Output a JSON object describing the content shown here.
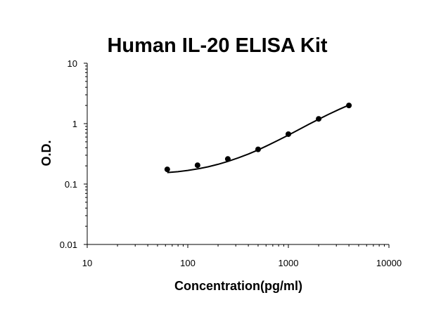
{
  "chart_data": {
    "type": "scatter",
    "title": "Human IL-20 ELISA Kit",
    "xlabel": "Concentration(pg/ml)",
    "ylabel": "O.D.",
    "x_scale": "log",
    "y_scale": "log",
    "xlim": [
      10,
      10000
    ],
    "ylim": [
      0.01,
      10
    ],
    "x_ticks": [
      {
        "value": 10,
        "label": "10"
      },
      {
        "value": 100,
        "label": "100"
      },
      {
        "value": 1000,
        "label": "1000"
      },
      {
        "value": 10000,
        "label": "10000"
      }
    ],
    "y_ticks": [
      {
        "value": 0.01,
        "label": "0.01"
      },
      {
        "value": 0.1,
        "label": "0.1"
      },
      {
        "value": 1,
        "label": "1"
      },
      {
        "value": 10,
        "label": "10"
      }
    ],
    "grid": false,
    "legend": "none",
    "series": [
      {
        "x": [
          62.5,
          125,
          250,
          500,
          1000,
          2000,
          4000
        ],
        "y": [
          0.175,
          0.205,
          0.26,
          0.375,
          0.67,
          1.2,
          2.0
        ],
        "marker": "circle",
        "fit_line": true
      }
    ],
    "fit_curve": {
      "x": [
        62.5,
        80,
        100,
        130,
        160,
        200,
        250,
        320,
        400,
        500,
        640,
        800,
        1000,
        1300,
        1600,
        2000,
        2500,
        3200,
        4000
      ],
      "y": [
        0.155,
        0.16,
        0.168,
        0.18,
        0.193,
        0.212,
        0.237,
        0.272,
        0.314,
        0.367,
        0.445,
        0.534,
        0.645,
        0.812,
        0.975,
        1.18,
        1.42,
        1.72,
        2.03
      ]
    },
    "colors": {
      "marker": "#000000",
      "line": "#000000",
      "axis": "#000000"
    }
  }
}
